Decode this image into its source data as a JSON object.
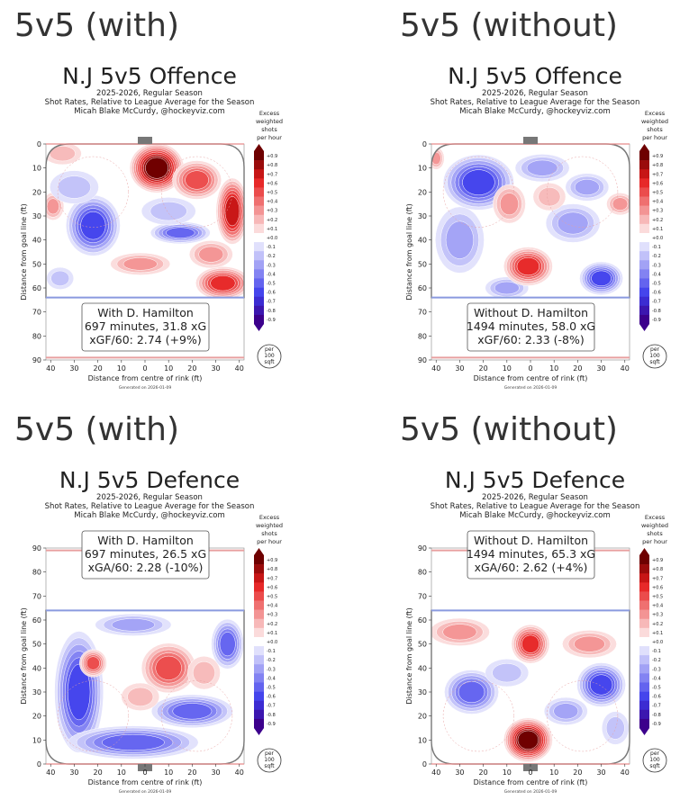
{
  "headers": [
    "5v5 (with)",
    "5v5 (without)",
    "5v5 (with)",
    "5v5 (without)"
  ],
  "panels": [
    {
      "title": "N.J 5v5 Offence",
      "subtitle": [
        "2025-2026, Regular Season",
        "Shot Rates, Relative to League Average for the Season",
        "Micah Blake McCurdy, @hockeyviz.com"
      ],
      "info": [
        "With D. Hamilton",
        "697 minutes, 31.8 xG",
        "xGF/60: 2.74 (+9%)"
      ],
      "orientation": "offence"
    },
    {
      "title": "N.J 5v5 Offence",
      "subtitle": [
        "2025-2026, Regular Season",
        "Shot Rates, Relative to League Average for the Season",
        "Micah Blake McCurdy, @hockeyviz.com"
      ],
      "info": [
        "Without D. Hamilton",
        "1494 minutes, 58.0 xG",
        "xGF/60: 2.33 (-8%)"
      ],
      "orientation": "offence"
    },
    {
      "title": "N.J 5v5 Defence",
      "subtitle": [
        "2025-2026, Regular Season",
        "Shot Rates, Relative to League Average for the Season",
        "Micah Blake McCurdy, @hockeyviz.com"
      ],
      "info": [
        "With D. Hamilton",
        "697 minutes, 26.5 xG",
        "xGA/60: 2.28 (-10%)"
      ],
      "orientation": "defence"
    },
    {
      "title": "N.J 5v5 Defence",
      "subtitle": [
        "2025-2026, Regular Season",
        "Shot Rates, Relative to League Average for the Season",
        "Micah Blake McCurdy, @hockeyviz.com"
      ],
      "info": [
        "Without D. Hamilton",
        "1494 minutes, 65.3 xG",
        "xGA/60: 2.62 (+4%)"
      ],
      "orientation": "defence"
    }
  ],
  "common": {
    "xlabel": "Distance from centre of rink (ft)",
    "ylabel": "Distance from goal line (ft)",
    "generated": "Generated on 2026-01-09",
    "colorbar_title": [
      "Excess",
      "weighted",
      "shots",
      "per hour"
    ],
    "colorbar_ticks": [
      "+0.9",
      "+0.8",
      "+0.7",
      "+0.6",
      "+0.5",
      "+0.4",
      "+0.3",
      "+0.2",
      "+0.1",
      "+0.0",
      "-0.1",
      "-0.2",
      "-0.3",
      "-0.4",
      "-0.5",
      "-0.6",
      "-0.7",
      "-0.8",
      "-0.9"
    ],
    "unit_badge": [
      "per",
      "100",
      "sqft"
    ],
    "x_ticks": [
      "40",
      "30",
      "20",
      "10",
      "0",
      "10",
      "20",
      "30",
      "40"
    ],
    "y_ticks_offence": [
      "0",
      "10",
      "20",
      "30",
      "40",
      "50",
      "60",
      "70",
      "80",
      "90"
    ],
    "y_ticks_defence": [
      "90",
      "80",
      "70",
      "60",
      "50",
      "40",
      "30",
      "20",
      "10",
      "0"
    ]
  },
  "chart_data": [
    {
      "type": "heatmap",
      "title": "N.J 5v5 Offence",
      "series_label": "With D. Hamilton",
      "xlabel": "Distance from centre of rink (ft)",
      "ylabel": "Distance from goal line (ft)",
      "xlim": [
        -42,
        42
      ],
      "ylim": [
        0,
        90
      ],
      "color_range": [
        -0.9,
        0.9
      ],
      "blobs": [
        {
          "x": 5,
          "y": 10,
          "value": 0.9,
          "rx": 10,
          "ry": 9
        },
        {
          "x": 22,
          "y": 15,
          "value": 0.5,
          "rx": 9,
          "ry": 7
        },
        {
          "x": 37,
          "y": 28,
          "value": 0.7,
          "rx": 6,
          "ry": 12
        },
        {
          "x": 33,
          "y": 58,
          "value": 0.6,
          "rx": 10,
          "ry": 6
        },
        {
          "x": -2,
          "y": 50,
          "value": 0.25,
          "rx": 11,
          "ry": 4
        },
        {
          "x": 28,
          "y": 46,
          "value": 0.3,
          "rx": 8,
          "ry": 5
        },
        {
          "x": -39,
          "y": 26,
          "value": 0.3,
          "rx": 4,
          "ry": 5
        },
        {
          "x": -35,
          "y": 4,
          "value": 0.2,
          "rx": 7,
          "ry": 4
        },
        {
          "x": -22,
          "y": 34,
          "value": -0.55,
          "rx": 10,
          "ry": 11
        },
        {
          "x": -30,
          "y": 18,
          "value": -0.2,
          "rx": 9,
          "ry": 6
        },
        {
          "x": 15,
          "y": 37,
          "value": -0.45,
          "rx": 11,
          "ry": 4
        },
        {
          "x": 10,
          "y": 28,
          "value": -0.15,
          "rx": 10,
          "ry": 5
        },
        {
          "x": -36,
          "y": 56,
          "value": -0.2,
          "rx": 5,
          "ry": 4
        }
      ]
    },
    {
      "type": "heatmap",
      "title": "N.J 5v5 Offence",
      "series_label": "Without D. Hamilton",
      "xlabel": "Distance from centre of rink (ft)",
      "ylabel": "Distance from goal line (ft)",
      "xlim": [
        -42,
        42
      ],
      "ylim": [
        0,
        90
      ],
      "color_range": [
        -0.9,
        0.9
      ],
      "blobs": [
        {
          "x": -22,
          "y": 16,
          "value": -0.55,
          "rx": 13,
          "ry": 10
        },
        {
          "x": -30,
          "y": 40,
          "value": -0.35,
          "rx": 9,
          "ry": 12
        },
        {
          "x": 30,
          "y": 56,
          "value": -0.6,
          "rx": 8,
          "ry": 6
        },
        {
          "x": 18,
          "y": 33,
          "value": -0.25,
          "rx": 10,
          "ry": 7
        },
        {
          "x": 24,
          "y": 18,
          "value": -0.3,
          "rx": 8,
          "ry": 5
        },
        {
          "x": 5,
          "y": 10,
          "value": -0.25,
          "rx": 10,
          "ry": 5
        },
        {
          "x": -10,
          "y": 60,
          "value": -0.25,
          "rx": 8,
          "ry": 4
        },
        {
          "x": -1,
          "y": 51,
          "value": 0.55,
          "rx": 9,
          "ry": 7
        },
        {
          "x": -9,
          "y": 25,
          "value": 0.25,
          "rx": 6,
          "ry": 7
        },
        {
          "x": 8,
          "y": 22,
          "value": 0.2,
          "rx": 6,
          "ry": 5
        },
        {
          "x": 38,
          "y": 25,
          "value": 0.25,
          "rx": 5,
          "ry": 4
        },
        {
          "x": -40,
          "y": 6,
          "value": 0.3,
          "rx": 3,
          "ry": 4
        }
      ]
    },
    {
      "type": "heatmap",
      "title": "N.J 5v5 Defence",
      "series_label": "With D. Hamilton",
      "xlabel": "Distance from centre of rink (ft)",
      "ylabel": "Distance from goal line (ft)",
      "xlim": [
        -42,
        42
      ],
      "ylim": [
        0,
        90
      ],
      "color_range": [
        -0.9,
        0.9
      ],
      "blobs": [
        {
          "x": -28,
          "y": 30,
          "value": -0.6,
          "rx": 9,
          "ry": 22
        },
        {
          "x": -5,
          "y": 9,
          "value": -0.5,
          "rx": 24,
          "ry": 6
        },
        {
          "x": 20,
          "y": 22,
          "value": -0.5,
          "rx": 15,
          "ry": 6
        },
        {
          "x": 35,
          "y": 50,
          "value": -0.45,
          "rx": 6,
          "ry": 9
        },
        {
          "x": -5,
          "y": 58,
          "value": -0.3,
          "rx": 14,
          "ry": 4
        },
        {
          "x": -22,
          "y": 42,
          "value": 0.45,
          "rx": 5,
          "ry": 5
        },
        {
          "x": 10,
          "y": 40,
          "value": 0.45,
          "rx": 10,
          "ry": 9
        },
        {
          "x": 25,
          "y": 38,
          "value": 0.2,
          "rx": 6,
          "ry": 6
        },
        {
          "x": -2,
          "y": 28,
          "value": 0.15,
          "rx": 7,
          "ry": 5
        }
      ]
    },
    {
      "type": "heatmap",
      "title": "N.J 5v5 Defence",
      "series_label": "Without D. Hamilton",
      "xlabel": "Distance from centre of rink (ft)",
      "ylabel": "Distance from goal line (ft)",
      "xlim": [
        -42,
        42
      ],
      "ylim": [
        0,
        90
      ],
      "color_range": [
        -0.9,
        0.9
      ],
      "blobs": [
        {
          "x": -1,
          "y": 10,
          "value": 0.9,
          "rx": 9,
          "ry": 8
        },
        {
          "x": 0,
          "y": 50,
          "value": 0.55,
          "rx": 7,
          "ry": 7
        },
        {
          "x": -30,
          "y": 55,
          "value": 0.3,
          "rx": 11,
          "ry": 5
        },
        {
          "x": 25,
          "y": 50,
          "value": 0.25,
          "rx": 10,
          "ry": 5
        },
        {
          "x": -25,
          "y": 30,
          "value": -0.45,
          "rx": 10,
          "ry": 8
        },
        {
          "x": 30,
          "y": 33,
          "value": -0.6,
          "rx": 9,
          "ry": 8
        },
        {
          "x": 15,
          "y": 22,
          "value": -0.3,
          "rx": 8,
          "ry": 5
        },
        {
          "x": -10,
          "y": 38,
          "value": -0.2,
          "rx": 8,
          "ry": 5
        },
        {
          "x": 36,
          "y": 15,
          "value": -0.2,
          "rx": 5,
          "ry": 6
        }
      ]
    }
  ]
}
